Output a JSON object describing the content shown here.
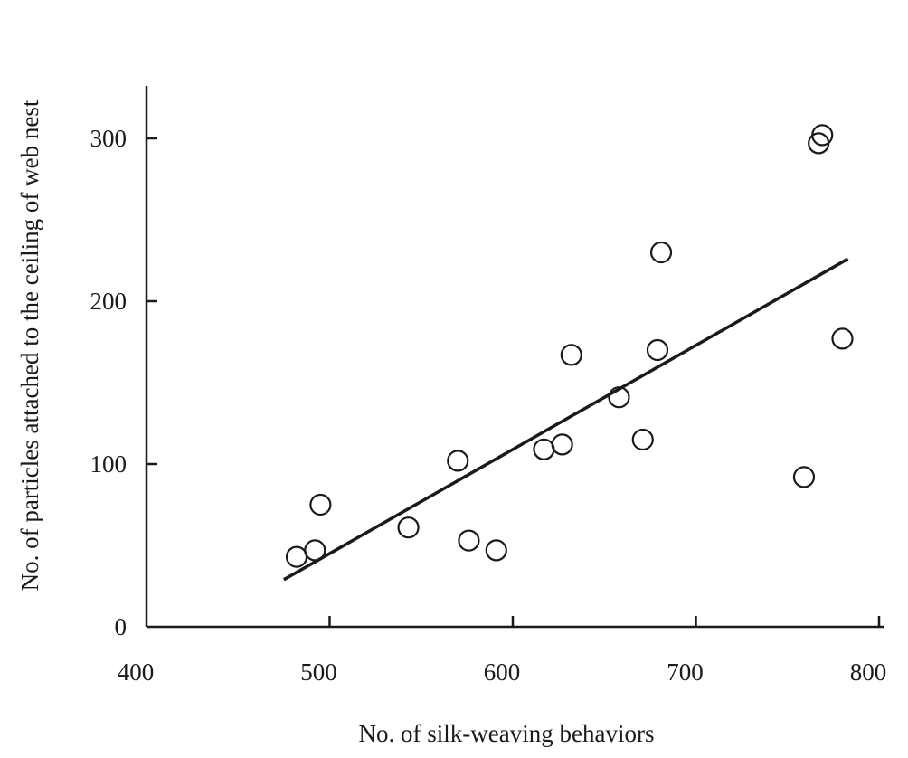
{
  "chart_data": {
    "type": "scatter",
    "xlabel": "No. of silk-weaving behaviors",
    "ylabel": "No.  of  particles attached to the ceiling of web nest",
    "xlim": [
      400,
      800
    ],
    "ylim": [
      0,
      330
    ],
    "xticks": [
      400,
      500,
      600,
      700,
      800
    ],
    "yticks": [
      0,
      100,
      200,
      300
    ],
    "grid": false,
    "series": [
      {
        "x": [
          482,
          492,
          495,
          543,
          570,
          576,
          591,
          617,
          627,
          632,
          658,
          671,
          679,
          681,
          759,
          767,
          769,
          780
        ],
        "y": [
          43,
          47,
          75,
          61,
          102,
          53,
          47,
          109,
          112,
          167,
          141,
          115,
          170,
          230,
          92,
          297,
          302,
          177
        ]
      }
    ],
    "fit_line": {
      "x": [
        475,
        783
      ],
      "y": [
        29,
        226
      ]
    }
  }
}
